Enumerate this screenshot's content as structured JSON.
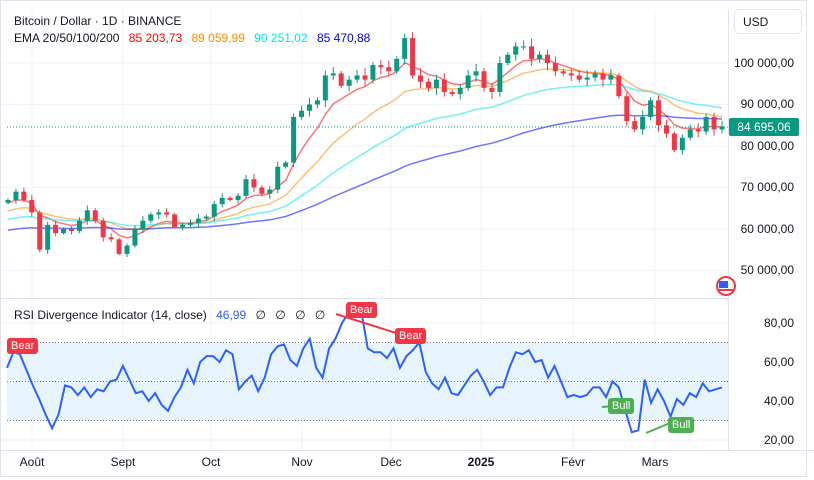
{
  "header": {
    "title": "Bitcoin / Dollar · 1D · BINANCE",
    "ema_label": "EMA 20/50/100/200",
    "ema_values": [
      {
        "value": "85 203,73",
        "color": "#ff0000"
      },
      {
        "value": "89 059,99",
        "color": "#ff8c00"
      },
      {
        "value": "90 251,02",
        "color": "#00e5ee"
      },
      {
        "value": "85 470,88",
        "color": "#0000ff"
      }
    ],
    "currency": "USD"
  },
  "rsi_header": {
    "label": "RSI Divergence Indicator (14, close)",
    "value": "46,99",
    "value_color": "#2962ff",
    "empty_values": [
      "∅",
      "∅",
      "∅",
      "∅"
    ]
  },
  "last_price": "84 695,06",
  "colors": {
    "up": "#089981",
    "down": "#f23645",
    "rsi": "#2962ff",
    "bear": "#f23645",
    "bull": "#4caf50",
    "band": "#e8f4fd"
  },
  "chart_data": [
    {
      "type": "candlestick",
      "title": "Bitcoin / Dollar · 1D · BINANCE",
      "ylim": [
        45000,
        110000
      ],
      "yticks": [
        "100 000,00",
        "90 000,00",
        "80 000,00",
        "70 000,00",
        "60 000,00",
        "50 000,00"
      ],
      "ytick_values": [
        100000,
        90000,
        80000,
        70000,
        60000,
        50000
      ],
      "closes": [
        67000,
        69000,
        67000,
        64000,
        55000,
        61000,
        59000,
        60000,
        59500,
        62000,
        64500,
        62000,
        58000,
        57500,
        54000,
        56000,
        60000,
        62000,
        63500,
        64000,
        63500,
        60500,
        61000,
        61500,
        62500,
        63000,
        66000,
        67500,
        67000,
        68000,
        72000,
        70000,
        68500,
        69500,
        75000,
        76000,
        87000,
        88500,
        90000,
        91000,
        97000,
        97500,
        94500,
        96000,
        97000,
        96000,
        99500,
        99000,
        98000,
        101000,
        106000,
        97000,
        95500,
        94000,
        96000,
        93000,
        92500,
        94000,
        97000,
        98000,
        94000,
        93000,
        100000,
        102000,
        104000,
        104000,
        101000,
        102000,
        100000,
        98000,
        97500,
        97000,
        96000,
        96500,
        97500,
        96000,
        97000,
        92000,
        86000,
        84000,
        87000,
        91000,
        85000,
        83000,
        79000,
        82000,
        84000,
        83500,
        87000,
        84000,
        84695
      ],
      "series": [
        {
          "name": "EMA 20",
          "color": "#ff0000"
        },
        {
          "name": "EMA 50",
          "color": "#ff8c00"
        },
        {
          "name": "EMA 100",
          "color": "#00e5ee"
        },
        {
          "name": "EMA 200",
          "color": "#0000ff"
        }
      ],
      "xticks": [
        {
          "label": "Août",
          "bold": false
        },
        {
          "label": "Sept",
          "bold": false
        },
        {
          "label": "Oct",
          "bold": false
        },
        {
          "label": "Nov",
          "bold": false
        },
        {
          "label": "Déc",
          "bold": false
        },
        {
          "label": "2025",
          "bold": true
        },
        {
          "label": "Févr",
          "bold": false
        },
        {
          "label": "Mars",
          "bold": false
        }
      ]
    },
    {
      "type": "line",
      "title": "RSI Divergence Indicator (14, close)",
      "ylim": [
        14,
        87
      ],
      "yticks": [
        "80,00",
        "60,00",
        "40,00",
        "20,00"
      ],
      "ytick_values": [
        80,
        60,
        40,
        20
      ],
      "bands": [
        30,
        50,
        70
      ],
      "values": [
        57,
        65,
        64,
        56,
        48,
        41,
        33,
        26,
        33,
        48,
        47,
        43,
        47,
        42,
        46,
        45,
        50,
        51,
        58,
        51,
        44,
        45,
        40,
        44,
        38,
        35,
        42,
        47,
        56,
        49,
        60,
        63,
        63,
        60,
        66,
        64,
        46,
        50,
        53,
        45,
        52,
        64,
        68,
        69,
        61,
        58,
        67,
        72,
        57,
        52,
        67,
        72,
        80,
        85,
        84,
        86,
        67,
        65,
        65,
        62,
        67,
        57,
        63,
        66,
        70,
        55,
        49,
        46,
        52,
        44,
        43,
        48,
        53,
        56,
        50,
        43,
        47,
        47,
        57,
        65,
        64,
        66,
        60,
        61,
        52,
        58,
        50,
        42,
        43,
        42,
        43,
        47,
        47,
        42,
        50,
        47,
        35,
        24,
        25,
        51,
        39,
        46,
        40,
        32,
        41,
        38,
        44,
        42,
        49,
        45,
        46,
        47
      ],
      "divergences": [
        {
          "label": "Bear",
          "kind": "bear"
        },
        {
          "label": "Bear",
          "kind": "bear"
        },
        {
          "label": "Bear",
          "kind": "bear"
        },
        {
          "label": "Bull",
          "kind": "bull"
        },
        {
          "label": "Bull",
          "kind": "bull"
        }
      ]
    }
  ]
}
